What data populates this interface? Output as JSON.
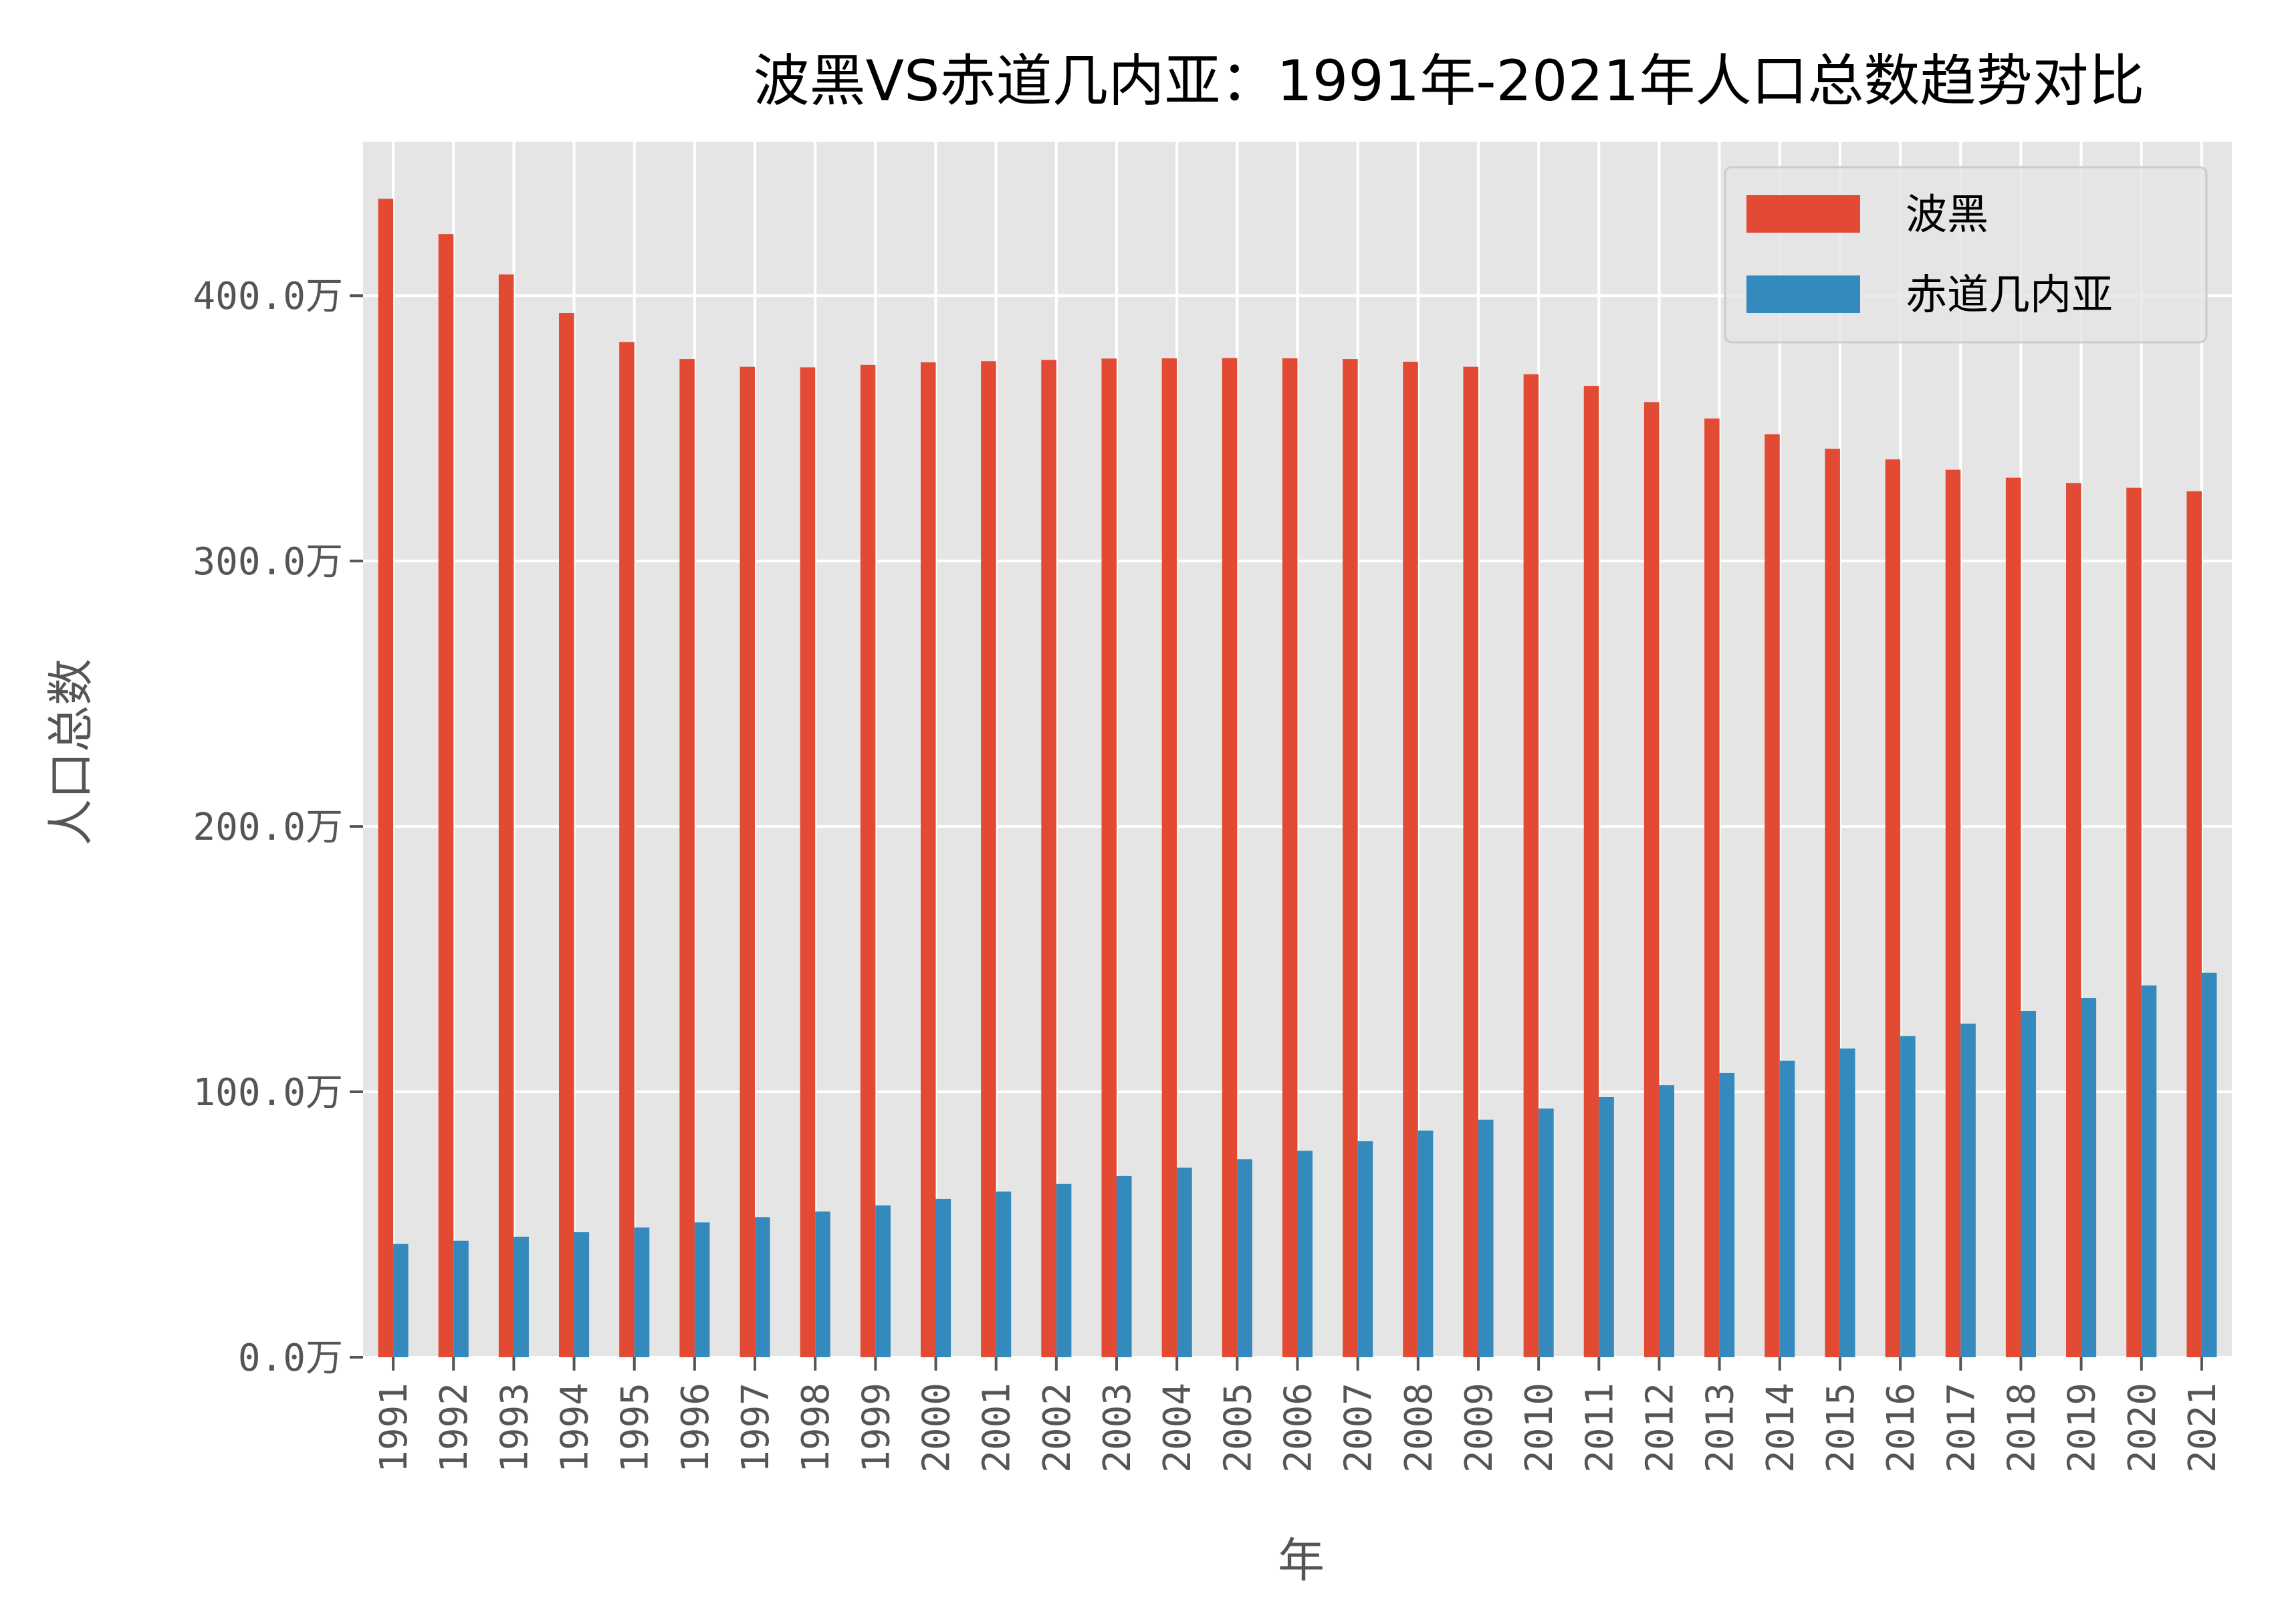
{
  "chart_data": {
    "type": "bar",
    "title": "波黑VS赤道几内亚：1991年-2021年人口总数趋势对比",
    "xlabel": "年",
    "ylabel": "人口总数",
    "unit": "万",
    "categories": [
      "1991",
      "1992",
      "1993",
      "1994",
      "1995",
      "1996",
      "1997",
      "1998",
      "1999",
      "2000",
      "2001",
      "2002",
      "2003",
      "2004",
      "2005",
      "2006",
      "2007",
      "2008",
      "2009",
      "2010",
      "2011",
      "2012",
      "2013",
      "2014",
      "2015",
      "2016",
      "2017",
      "2018",
      "2019",
      "2020",
      "2021"
    ],
    "series": [
      {
        "name": "波黑",
        "color": "#E24A33",
        "values": [
          436.5,
          423.2,
          408.0,
          393.5,
          382.5,
          376.1,
          373.2,
          373.0,
          373.9,
          374.9,
          375.3,
          375.8,
          376.3,
          376.4,
          376.5,
          376.4,
          376.1,
          375.1,
          373.2,
          370.4,
          366.0,
          359.9,
          353.7,
          347.8,
          342.3,
          338.3,
          334.4,
          331.4,
          329.4,
          327.6,
          326.3
        ]
      },
      {
        "name": "赤道几内亚",
        "color": "#348ABD",
        "values": [
          42.7,
          43.9,
          45.4,
          47.1,
          48.9,
          50.8,
          52.8,
          54.9,
          57.2,
          59.7,
          62.4,
          65.3,
          68.3,
          71.4,
          74.6,
          77.8,
          81.4,
          85.4,
          89.5,
          93.7,
          98.0,
          102.5,
          107.1,
          111.7,
          116.3,
          121.0,
          125.7,
          130.5,
          135.3,
          140.1,
          144.9
        ]
      }
    ],
    "yticks": [
      "0.0万",
      "100.0万",
      "200.0万",
      "300.0万",
      "400.0万"
    ],
    "ylim": [
      0,
      458
    ],
    "grid": true,
    "legend_position": "top-right",
    "background": "#E5E5E5"
  }
}
